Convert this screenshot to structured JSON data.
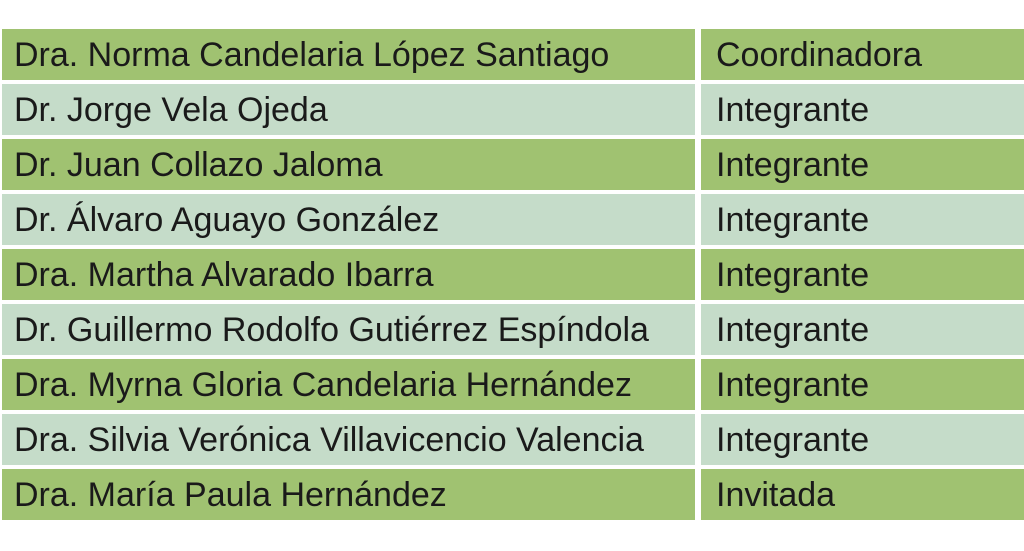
{
  "colors": {
    "row_dark": "#a0c271",
    "row_light": "#c5dcc9",
    "text": "#1a1a1a",
    "background": "#ffffff"
  },
  "table": {
    "columns": [
      "member_name",
      "role"
    ],
    "rows": [
      {
        "name": "Dra. Norma Candelaria López Santiago",
        "role": "Coordinadora"
      },
      {
        "name": "Dr. Jorge Vela Ojeda",
        "role": "Integrante"
      },
      {
        "name": "Dr. Juan Collazo Jaloma",
        "role": "Integrante"
      },
      {
        "name": "Dr. Álvaro Aguayo González",
        "role": "Integrante"
      },
      {
        "name": "Dra. Martha Alvarado Ibarra",
        "role": "Integrante"
      },
      {
        "name": "Dr. Guillermo Rodolfo Gutiérrez Espíndola",
        "role": "Integrante"
      },
      {
        "name": "Dra. Myrna Gloria Candelaria Hernández",
        "role": "Integrante"
      },
      {
        "name": "Dra. Silvia Verónica Villavicencio Valencia",
        "role": "Integrante"
      },
      {
        "name": "Dra. María Paula Hernández",
        "role": "Invitada"
      }
    ]
  }
}
